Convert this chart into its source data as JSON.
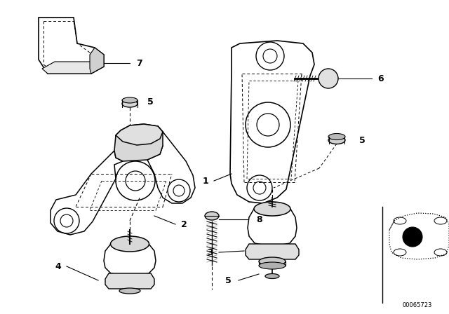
{
  "bg_color": "#ffffff",
  "line_color": "#000000",
  "fig_width": 6.4,
  "fig_height": 4.48,
  "dpi": 100,
  "watermark": "00065723"
}
